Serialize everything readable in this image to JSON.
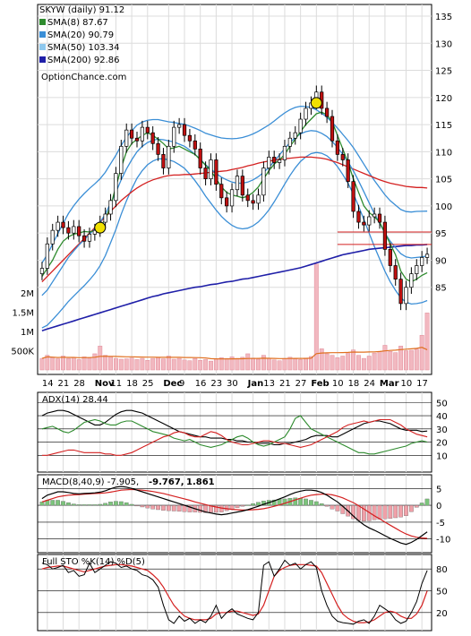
{
  "chart_data": [
    {
      "type": "candlestick",
      "title": "SKYW (daily) 91.12",
      "watermark": "OptionChance.com",
      "ylim": [
        80,
        135
      ],
      "y_ticks": [
        85,
        90,
        95,
        100,
        105,
        110,
        115,
        120,
        125,
        130,
        135
      ],
      "volume_ticks": [
        "500K",
        "1M",
        "1.5M",
        "2M"
      ],
      "x_tick_labels": [
        "14",
        "21",
        "28",
        "Nov",
        "11",
        "18",
        "25",
        "Dec",
        "9",
        "16",
        "23",
        "30",
        "Jan",
        "13",
        "21",
        "27",
        "Feb",
        "10",
        "18",
        "24",
        "Mar",
        "10",
        "17"
      ],
      "x_tick_bold": [
        false,
        false,
        false,
        true,
        false,
        false,
        false,
        true,
        false,
        false,
        false,
        false,
        true,
        false,
        false,
        false,
        true,
        false,
        false,
        false,
        true,
        false,
        false
      ],
      "legend": [
        {
          "label": "SMA(8) 87.67",
          "color": "#2e8b2e"
        },
        {
          "label": "SMA(20) 90.79",
          "color": "#3a8ed6"
        },
        {
          "label": "SMA(50) 103.34",
          "color": "#8ec8ee"
        },
        {
          "label": "SMA(200) 92.86",
          "color": "#1f1fa8"
        }
      ],
      "horizontal_levels": [
        {
          "value": 95.2,
          "color": "#d42020"
        },
        {
          "value": 92.9,
          "color": "#d42020"
        }
      ],
      "close": [
        88.5,
        93.0,
        95.5,
        97.0,
        96.0,
        95.0,
        96.2,
        94.5,
        93.5,
        94.8,
        95.5,
        97.0,
        98.5,
        101.0,
        106.0,
        111.0,
        114.0,
        112.5,
        112.0,
        114.5,
        113.5,
        111.5,
        109.5,
        107.0,
        111.0,
        114.5,
        115.0,
        113.0,
        112.0,
        110.5,
        107.0,
        105.0,
        108.5,
        104.0,
        101.5,
        100.0,
        103.0,
        105.5,
        102.0,
        101.0,
        100.5,
        102.0,
        107.0,
        109.0,
        108.0,
        108.5,
        111.0,
        112.5,
        113.5,
        116.0,
        118.0,
        119.0,
        121.0,
        118.0,
        116.5,
        112.0,
        109.5,
        108.5,
        104.5,
        99.0,
        97.0,
        96.5,
        98.0,
        98.5,
        97.0,
        92.0,
        89.0,
        86.5,
        82.0,
        85.0,
        87.5,
        89.0,
        90.5,
        91.1
      ],
      "sma8": [
        87.0,
        88.5,
        90.0,
        92.0,
        93.5,
        94.3,
        94.8,
        95.0,
        95.3,
        95.2,
        95.5,
        96.2,
        97.5,
        100.0,
        103.5,
        107.0,
        110.0,
        111.5,
        112.3,
        113.0,
        113.5,
        113.0,
        112.3,
        111.5,
        110.5,
        110.7,
        111.0,
        110.5,
        110.0,
        109.5,
        108.5,
        107.5,
        106.5,
        105.0,
        103.5,
        102.5,
        102.0,
        101.8,
        101.5,
        101.8,
        102.5,
        103.5,
        105.0,
        106.5,
        107.7,
        108.5,
        109.5,
        111.0,
        112.3,
        113.7,
        115.0,
        116.0,
        117.0,
        117.3,
        116.8,
        115.5,
        113.0,
        110.5,
        108.0,
        105.0,
        102.5,
        100.0,
        98.8,
        98.0,
        97.0,
        95.0,
        93.0,
        91.0,
        88.0,
        86.5,
        86.0,
        86.5,
        87.2,
        87.7
      ],
      "sma20": [
        83.5,
        84.5,
        86.0,
        87.5,
        89.0,
        90.5,
        91.7,
        92.8,
        93.8,
        94.8,
        95.8,
        97.0,
        98.5,
        100.5,
        102.5,
        104.8,
        106.8,
        108.5,
        110.0,
        111.0,
        111.7,
        112.1,
        112.3,
        112.2,
        112.0,
        111.8,
        111.4,
        111.0,
        110.3,
        109.5,
        108.6,
        107.6,
        106.8,
        106.0,
        105.3,
        104.8,
        104.4,
        104.2,
        104.2,
        104.4,
        104.8,
        105.4,
        106.2,
        107.1,
        108.2,
        109.4,
        110.6,
        111.7,
        112.6,
        113.3,
        113.7,
        113.9,
        113.8,
        113.4,
        112.8,
        111.9,
        110.8,
        109.5,
        108.1,
        106.5,
        104.6,
        102.6,
        100.6,
        98.6,
        96.8,
        95.0,
        93.5,
        92.3,
        91.2,
        90.6,
        90.4,
        90.5,
        90.6,
        90.8
      ],
      "sma50": [
        86.0,
        87.0,
        88.0,
        89.0,
        90.0,
        91.0,
        92.0,
        93.0,
        94.0,
        95.0,
        96.0,
        97.0,
        98.0,
        99.0,
        100.0,
        101.0,
        101.8,
        102.6,
        103.3,
        103.9,
        104.4,
        104.8,
        105.1,
        105.4,
        105.6,
        105.7,
        105.7,
        105.8,
        105.8,
        105.9,
        106.0,
        106.1,
        106.2,
        106.3,
        106.4,
        106.5,
        106.7,
        106.9,
        107.1,
        107.4,
        107.6,
        107.9,
        108.1,
        108.3,
        108.4,
        108.6,
        108.7,
        108.8,
        108.9,
        109.0,
        109.0,
        109.0,
        108.9,
        108.8,
        108.6,
        108.3,
        108.0,
        107.6,
        107.2,
        106.8,
        106.4,
        106.0,
        105.6,
        105.2,
        104.8,
        104.5,
        104.2,
        104.0,
        103.8,
        103.6,
        103.5,
        103.4,
        103.4,
        103.3
      ],
      "sma200": [
        77.0,
        77.3,
        77.6,
        77.9,
        78.2,
        78.5,
        78.8,
        79.1,
        79.4,
        79.7,
        80.0,
        80.3,
        80.6,
        80.9,
        81.2,
        81.5,
        81.8,
        82.1,
        82.4,
        82.7,
        83.0,
        83.3,
        83.5,
        83.8,
        84.0,
        84.2,
        84.4,
        84.6,
        84.8,
        85.0,
        85.1,
        85.3,
        85.5,
        85.6,
        85.8,
        86.0,
        86.1,
        86.3,
        86.5,
        86.6,
        86.8,
        87.0,
        87.2,
        87.4,
        87.6,
        87.8,
        88.0,
        88.2,
        88.4,
        88.6,
        88.9,
        89.2,
        89.5,
        89.8,
        90.1,
        90.4,
        90.7,
        91.0,
        91.2,
        91.4,
        91.6,
        91.8,
        92.0,
        92.1,
        92.2,
        92.3,
        92.4,
        92.5,
        92.6,
        92.7,
        92.7,
        92.8,
        92.8,
        92.9
      ],
      "volume": [
        300000,
        380000,
        320000,
        290000,
        360000,
        300000,
        330000,
        270000,
        340000,
        310000,
        420000,
        620000,
        380000,
        340000,
        300000,
        280000,
        290000,
        310000,
        270000,
        300000,
        250000,
        300000,
        330000,
        290000,
        360000,
        280000,
        300000,
        260000,
        240000,
        300000,
        250000,
        270000,
        230000,
        290000,
        320000,
        300000,
        340000,
        300000,
        330000,
        420000,
        310000,
        280000,
        380000,
        300000,
        260000,
        240000,
        300000,
        330000,
        290000,
        270000,
        310000,
        350000,
        2750000,
        550000,
        420000,
        380000,
        320000,
        360000,
        430000,
        520000,
        380000,
        300000,
        360000,
        440000,
        480000,
        640000,
        480000,
        450000,
        620000,
        500000,
        510000,
        540000,
        900000,
        1480000
      ]
    },
    {
      "type": "line",
      "title": "ADX(14) 28.44",
      "ylim": [
        0,
        55
      ],
      "y_ticks": [
        10,
        20,
        30,
        40,
        50
      ],
      "series": [
        {
          "color": "#000000",
          "values": [
            40,
            42,
            43,
            44,
            44,
            43,
            41,
            39,
            37,
            35,
            33,
            33,
            35,
            38,
            41,
            43,
            44,
            44,
            43,
            42,
            40,
            38,
            36,
            34,
            32,
            30,
            28,
            27,
            26,
            25,
            24,
            24,
            23,
            23,
            23,
            22,
            22,
            21,
            21,
            20,
            20,
            19,
            19,
            19,
            18,
            18,
            19,
            19,
            20,
            21,
            22,
            24,
            25,
            25,
            25,
            24,
            24,
            26,
            28,
            30,
            32,
            34,
            35,
            36,
            36,
            35,
            34,
            32,
            30,
            29,
            29,
            29,
            28,
            28.4
          ]
        },
        {
          "color": "#2e8b2e",
          "values": [
            30,
            31,
            32,
            30,
            28,
            27,
            29,
            32,
            35,
            36,
            37,
            36,
            34,
            33,
            33,
            35,
            36,
            36,
            34,
            32,
            30,
            28,
            27,
            26,
            25,
            23,
            22,
            21,
            22,
            20,
            18,
            17,
            16,
            17,
            18,
            20,
            22,
            24,
            25,
            23,
            20,
            18,
            17,
            18,
            20,
            22,
            24,
            30,
            38,
            40,
            35,
            30,
            28,
            26,
            24,
            22,
            20,
            18,
            16,
            14,
            12,
            12,
            11,
            11,
            12,
            13,
            14,
            15,
            16,
            17,
            19,
            20,
            21,
            20
          ]
        },
        {
          "color": "#d42020",
          "values": [
            10,
            10,
            11,
            12,
            13,
            14,
            14,
            13,
            12,
            12,
            12,
            12,
            11,
            11,
            10,
            10,
            11,
            12,
            14,
            16,
            18,
            20,
            22,
            24,
            25,
            27,
            28,
            27,
            25,
            24,
            24,
            26,
            28,
            27,
            25,
            22,
            20,
            19,
            18,
            18,
            19,
            20,
            21,
            21,
            20,
            19,
            19,
            18,
            17,
            16,
            17,
            18,
            20,
            22,
            24,
            26,
            28,
            31,
            33,
            34,
            35,
            36,
            35,
            36,
            37,
            37,
            37,
            35,
            33,
            30,
            28,
            26,
            25,
            24
          ]
        }
      ]
    },
    {
      "type": "bar_line",
      "title": "MACD(8,40,9) -7.905,",
      "extra_labels": [
        {
          "text": "-9.767,",
          "color": "#d42020"
        },
        {
          "text": "1.861",
          "color": "#1f4fcc"
        }
      ],
      "ylim": [
        -13,
        8
      ],
      "y_ticks": [
        -10,
        -5,
        0,
        5
      ],
      "macd": [
        2,
        3,
        3.5,
        4,
        4,
        3.8,
        3.5,
        3.4,
        3.5,
        3.6,
        3.7,
        3.9,
        4.3,
        4.9,
        5.4,
        5.6,
        5.4,
        5.0,
        4.5,
        4.0,
        3.5,
        3.0,
        2.5,
        2.0,
        1.5,
        1.0,
        0.5,
        0.0,
        -0.5,
        -1,
        -1.5,
        -2,
        -2.3,
        -2.6,
        -2.8,
        -2.6,
        -2.3,
        -2.0,
        -1.7,
        -1.3,
        -0.8,
        -0.3,
        0.3,
        0.8,
        1.3,
        1.9,
        2.5,
        3.2,
        3.8,
        4.2,
        4.5,
        4.5,
        4.3,
        3.8,
        3.0,
        2.0,
        1.0,
        -0.3,
        -1.7,
        -3.2,
        -4.6,
        -5.8,
        -6.7,
        -7.4,
        -8.2,
        -9.0,
        -9.8,
        -10.5,
        -11.2,
        -11.6,
        -11.0,
        -10.1,
        -9.0,
        -7.9
      ],
      "signal": [
        1,
        1.5,
        2,
        2.5,
        2.8,
        3,
        3.1,
        3.2,
        3.3,
        3.4,
        3.5,
        3.6,
        3.7,
        3.9,
        4.2,
        4.5,
        4.6,
        4.7,
        4.6,
        4.5,
        4.3,
        4.1,
        3.8,
        3.5,
        3.1,
        2.7,
        2.3,
        1.9,
        1.5,
        1.0,
        0.6,
        0.2,
        -0.2,
        -0.5,
        -0.8,
        -1.0,
        -1.2,
        -1.3,
        -1.4,
        -1.4,
        -1.3,
        -1.2,
        -1.0,
        -0.7,
        -0.3,
        0.1,
        0.6,
        1.1,
        1.6,
        2.1,
        2.6,
        3.0,
        3.2,
        3.3,
        3.3,
        3.1,
        2.7,
        2.2,
        1.5,
        0.8,
        -0.1,
        -1.1,
        -2.1,
        -3.1,
        -4.0,
        -5.0,
        -5.9,
        -6.8,
        -7.7,
        -8.5,
        -9.1,
        -9.5,
        -9.7,
        -9.8
      ],
      "histogram": [
        1,
        1.5,
        1.5,
        1.5,
        1.2,
        0.8,
        0.4,
        0.2,
        0.2,
        0.2,
        0.2,
        0.3,
        0.6,
        1.0,
        1.2,
        1.1,
        0.8,
        0.3,
        -0.1,
        -0.5,
        -0.8,
        -1.1,
        -1.3,
        -1.5,
        -1.6,
        -1.7,
        -1.8,
        -1.9,
        -2.0,
        -2.0,
        -2.1,
        -2.2,
        -2.1,
        -2.1,
        -2.0,
        -1.6,
        -1.1,
        -0.7,
        -0.3,
        0.1,
        0.5,
        0.9,
        1.3,
        1.5,
        1.6,
        1.8,
        1.9,
        2.1,
        2.2,
        2.1,
        1.9,
        1.5,
        1.1,
        0.5,
        -0.3,
        -1.1,
        -1.7,
        -2.5,
        -3.2,
        -4.0,
        -4.5,
        -4.7,
        -4.6,
        -4.3,
        -4.2,
        -4.0,
        -3.9,
        -3.7,
        -3.5,
        -3.1,
        -1.9,
        -0.6,
        0.7,
        1.9
      ]
    },
    {
      "type": "line",
      "title": "Full STO %K(14) %D(5)",
      "ylim": [
        0,
        95
      ],
      "y_ticks": [
        20,
        50,
        80
      ],
      "series": [
        {
          "color": "#000000",
          "values": [
            88,
            86,
            80,
            82,
            85,
            75,
            78,
            70,
            72,
            88,
            75,
            80,
            85,
            90,
            88,
            82,
            84,
            80,
            78,
            72,
            70,
            65,
            55,
            30,
            10,
            5,
            15,
            8,
            12,
            5,
            10,
            6,
            15,
            30,
            12,
            20,
            25,
            18,
            15,
            12,
            10,
            20,
            85,
            90,
            70,
            80,
            92,
            85,
            88,
            80,
            86,
            90,
            82,
            50,
            30,
            15,
            8,
            6,
            5,
            4,
            8,
            10,
            5,
            15,
            30,
            25,
            20,
            10,
            5,
            8,
            20,
            35,
            60,
            78
          ]
        },
        {
          "color": "#d42020",
          "values": [
            80,
            82,
            83,
            84,
            84,
            82,
            80,
            78,
            76,
            78,
            80,
            82,
            84,
            85,
            86,
            86,
            85,
            84,
            82,
            80,
            78,
            72,
            65,
            55,
            42,
            30,
            22,
            15,
            12,
            10,
            10,
            10,
            12,
            18,
            20,
            20,
            22,
            22,
            20,
            18,
            16,
            18,
            30,
            50,
            70,
            78,
            82,
            85,
            86,
            86,
            86,
            85,
            84,
            75,
            60,
            45,
            30,
            18,
            12,
            8,
            6,
            6,
            7,
            10,
            15,
            20,
            22,
            20,
            15,
            12,
            12,
            18,
            30,
            50
          ]
        }
      ]
    }
  ]
}
